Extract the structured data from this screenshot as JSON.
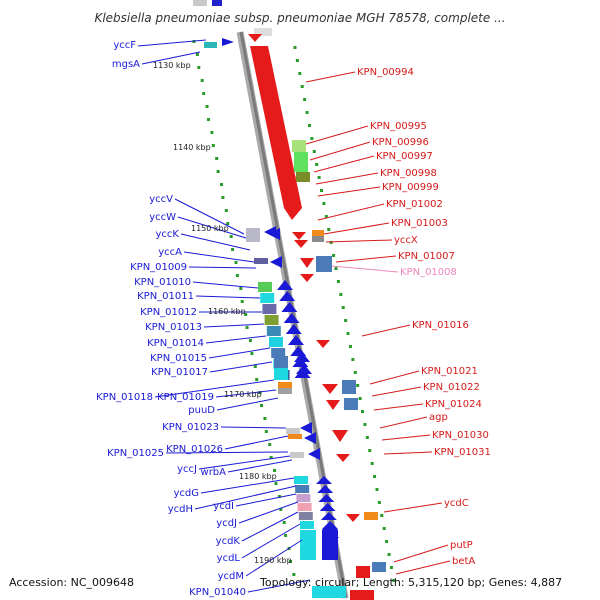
{
  "title": "Klebsiella pneumoniae subsp. pneumoniae MGH 78578, complete ...",
  "footer": {
    "accession": "Accession: NC_009648",
    "summary": "Topology: circular; Length: 5,315,120 bp; Genes: 4,887"
  },
  "ruler_labels": [
    "1130 kbp",
    "1140 kbp",
    "1150 kbp",
    "1160 kbp",
    "1170 kbp",
    "1180 kbp",
    "1190 kbp"
  ],
  "left_genes": [
    "yccF",
    "mgsA",
    "yccV",
    "yccW",
    "yccK",
    "yccA",
    "KPN_01009",
    "KPN_01010",
    "KPN_01011",
    "KPN_01012",
    "KPN_01013",
    "KPN_01014",
    "KPN_01015",
    "KPN_01017",
    "KPN_01018",
    "KPN_01019",
    "puuD",
    "KPN_01023",
    "KPN_01026",
    "KPN_01025",
    "yccJ",
    "wrbA",
    "ycdG",
    "ycdH",
    "ycdI",
    "ycdJ",
    "ycdK",
    "ycdL",
    "ycdM",
    "KPN_01040"
  ],
  "right_genes": [
    "KPN_00994",
    "KPN_00995",
    "KPN_00996",
    "KPN_00997",
    "KPN_00998",
    "KPN_00999",
    "KPN_01002",
    "KPN_01003",
    "yccX",
    "KPN_01007",
    "KPN_01008",
    "KPN_01016",
    "KPN_01021",
    "KPN_01022",
    "KPN_01024",
    "agp",
    "KPN_01030",
    "KPN_01031",
    "ycdC",
    "putP",
    "betA"
  ],
  "colors": {
    "left_strand_label": "#1a1ad6",
    "right_strand_label": "#d61a1a",
    "highlight_label": "#ee88bb",
    "backbone": "#8c8c8c",
    "ticks": "#2a9a2a"
  }
}
